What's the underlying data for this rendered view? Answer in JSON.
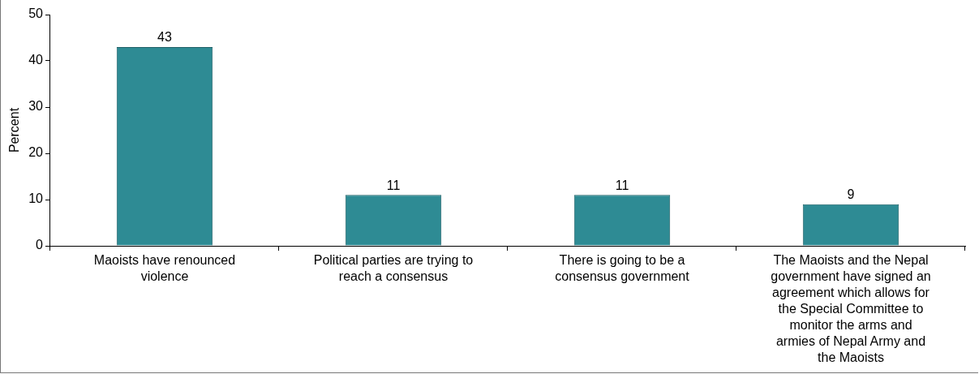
{
  "chart_data": {
    "type": "bar",
    "ylabel": "Percent",
    "categories": [
      "Maoists have renounced violence",
      "Political parties are trying to reach a consensus",
      "There is going to be a consensus government",
      "The Maoists and the Nepal government have signed an agreement which allows for the Special Committee to monitor the arms and armies of Nepal Army and the Maoists"
    ],
    "values": [
      43,
      11,
      11,
      9
    ],
    "color": "#2e8b94",
    "ylim": [
      0,
      50
    ],
    "yticks": [
      0,
      10,
      20,
      30,
      40,
      50
    ],
    "grid": false,
    "data_labels": true
  }
}
